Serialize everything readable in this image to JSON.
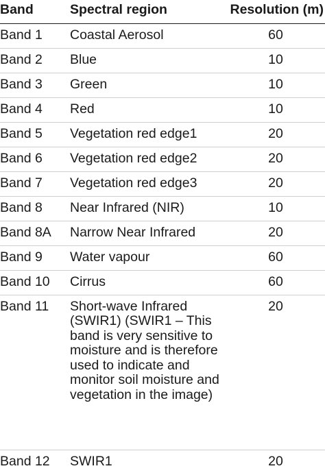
{
  "table": {
    "headers": [
      "Band",
      "Spectral region",
      "Resolution (m)"
    ],
    "rows": [
      {
        "band": "Band 1",
        "region": "Coastal Aerosol",
        "resolution": "60"
      },
      {
        "band": "Band 2",
        "region": "Blue",
        "resolution": "10"
      },
      {
        "band": "Band 3",
        "region": "Green",
        "resolution": "10"
      },
      {
        "band": "Band 4",
        "region": "Red",
        "resolution": "10"
      },
      {
        "band": "Band 5",
        "region": "Vegetation red edge1",
        "resolution": "20"
      },
      {
        "band": "Band 6",
        "region": "Vegetation red edge2",
        "resolution": "20"
      },
      {
        "band": "Band 7",
        "region": "Vegetation red edge3",
        "resolution": "20"
      },
      {
        "band": "Band 8",
        "region": "Near Infrared (NIR)",
        "resolution": "10"
      },
      {
        "band": "Band 8A",
        "region": "Narrow Near Infrared",
        "resolution": "20"
      },
      {
        "band": "Band 9",
        "region": "Water vapour",
        "resolution": "60"
      },
      {
        "band": "Band 10",
        "region": "Cirrus",
        "resolution": "60"
      },
      {
        "band": "Band 11",
        "region": "Short-wave Infrared (SWIR1) (SWIR1 – This band is very sensitive to moisture and is therefore used to indicate and monitor soil moisture and vegetation in the image)",
        "resolution": "20"
      },
      {
        "band": "Band 12",
        "region": "SWIR1",
        "resolution": "20"
      }
    ]
  }
}
